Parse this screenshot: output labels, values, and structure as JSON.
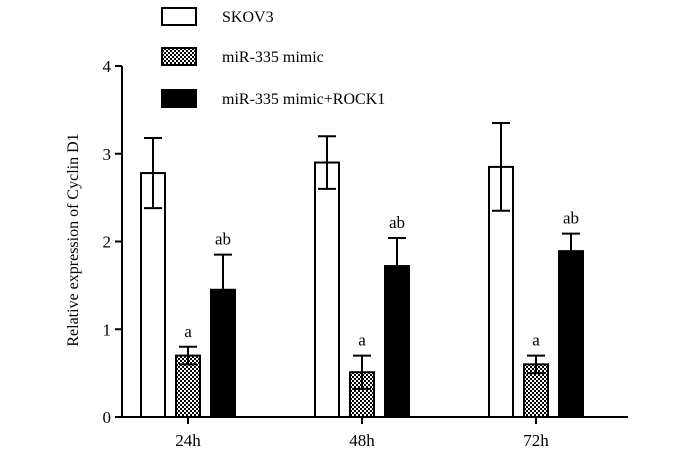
{
  "chart_data": {
    "type": "bar",
    "title": "",
    "xlabel": "",
    "ylabel": "Relative expression of Cyclin D1",
    "ylim": [
      0,
      4
    ],
    "yticks": [
      "0",
      "1",
      "2",
      "3",
      "4"
    ],
    "categories": [
      "24h",
      "48h",
      "72h"
    ],
    "grid": false,
    "legend_position": "top",
    "series": [
      {
        "name": "SKOV3",
        "style": "open",
        "values": [
          2.78,
          2.9,
          2.85
        ],
        "errors": [
          0.4,
          0.3,
          0.5
        ],
        "labels": [
          "",
          "",
          ""
        ]
      },
      {
        "name": "miR-335 mimic",
        "style": "checker",
        "values": [
          0.7,
          0.51,
          0.6
        ],
        "errors": [
          0.1,
          0.19,
          0.1
        ],
        "labels": [
          "a",
          "a",
          "a"
        ]
      },
      {
        "name": "miR-335 mimic+ROCK1",
        "style": "solid",
        "values": [
          1.45,
          1.72,
          1.89
        ],
        "errors": [
          0.4,
          0.32,
          0.2
        ],
        "labels": [
          "ab",
          "ab",
          "ab"
        ]
      }
    ]
  },
  "colors": {
    "ink": "#000000",
    "paper": "#ffffff"
  }
}
